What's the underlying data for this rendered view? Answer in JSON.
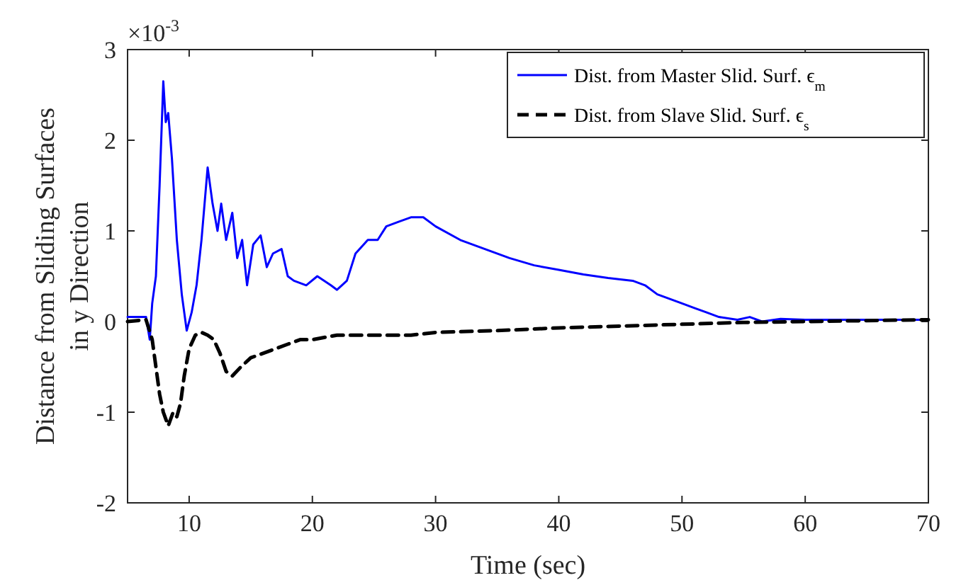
{
  "chart_data": {
    "type": "line",
    "xlabel": "Time (sec)",
    "ylabel": "Distance from Sliding Surfaces\nin y Direction",
    "annotations": [
      "×10$^{-3}$"
    ],
    "xlim": [
      5,
      70
    ],
    "ylim": [
      -2,
      3
    ],
    "xticks": [
      10,
      20,
      30,
      40,
      50,
      60,
      70
    ],
    "yticks": [
      -2,
      -1,
      0,
      1,
      2,
      3
    ],
    "grid": false,
    "legend": "top right",
    "series": [
      {
        "name": "Dist. from Master Slid. Surf. ϵ$_{m}$",
        "color": "#0000ff",
        "line_style": "solid",
        "x": [
          5,
          6.5,
          6.8,
          7.0,
          7.3,
          7.6,
          7.9,
          8.1,
          8.3,
          8.6,
          9.0,
          9.4,
          9.8,
          10.2,
          10.6,
          11.0,
          11.5,
          11.9,
          12.3,
          12.6,
          13.0,
          13.5,
          13.9,
          14.3,
          14.7,
          15.2,
          15.8,
          16.3,
          16.8,
          17.5,
          18.0,
          18.5,
          19.5,
          20.4,
          21.5,
          22.0,
          22.8,
          23.5,
          24.5,
          25.3,
          26,
          27,
          28,
          29,
          30,
          32,
          34,
          36,
          38,
          40,
          42,
          44,
          46,
          47,
          48,
          50,
          51,
          52,
          53,
          54.5,
          55.5,
          56.5,
          58,
          60,
          65,
          70
        ],
        "values": [
          0.05,
          0.05,
          -0.2,
          0.2,
          0.5,
          1.5,
          2.65,
          2.2,
          2.3,
          1.8,
          0.9,
          0.3,
          -0.1,
          0.1,
          0.4,
          0.9,
          1.7,
          1.3,
          1.0,
          1.3,
          0.9,
          1.2,
          0.7,
          0.9,
          0.4,
          0.85,
          0.95,
          0.6,
          0.75,
          0.8,
          0.5,
          0.45,
          0.4,
          0.5,
          0.4,
          0.35,
          0.45,
          0.75,
          0.9,
          0.9,
          1.05,
          1.1,
          1.15,
          1.15,
          1.05,
          0.9,
          0.8,
          0.7,
          0.62,
          0.57,
          0.52,
          0.48,
          0.45,
          0.4,
          0.3,
          0.2,
          0.15,
          0.1,
          0.05,
          0.02,
          0.05,
          0,
          0.03,
          0.02,
          0.02,
          0.02
        ]
      },
      {
        "name": "Dist. from Slave Slid. Surf. ϵ$_{s}$",
        "color": "#000000",
        "line_style": "dashed",
        "x": [
          5,
          6.5,
          7,
          7.3,
          7.6,
          7.9,
          8.3,
          8.7,
          9.0,
          9.3,
          9.6,
          10,
          10.5,
          11,
          11.5,
          12,
          12.5,
          13,
          13.5,
          14.2,
          15,
          16,
          17,
          18,
          19,
          20,
          22,
          25,
          28,
          30,
          35,
          40,
          45,
          50,
          55,
          60,
          70
        ],
        "values": [
          0,
          0.02,
          -0.2,
          -0.5,
          -0.8,
          -1.0,
          -1.15,
          -1.0,
          -1.05,
          -0.9,
          -0.6,
          -0.3,
          -0.15,
          -0.12,
          -0.15,
          -0.2,
          -0.35,
          -0.55,
          -0.6,
          -0.5,
          -0.4,
          -0.35,
          -0.3,
          -0.25,
          -0.2,
          -0.2,
          -0.15,
          -0.15,
          -0.15,
          -0.12,
          -0.1,
          -0.07,
          -0.05,
          -0.03,
          -0.01,
          0,
          0.02
        ]
      }
    ]
  }
}
